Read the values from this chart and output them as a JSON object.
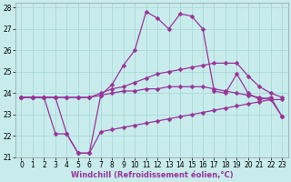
{
  "xlabel": "Windchill (Refroidissement éolien,°C)",
  "bg_color": "#c8ecec",
  "grid_color": "#a8d8d8",
  "line_color": "#993399",
  "hours": [
    0,
    1,
    2,
    3,
    4,
    5,
    6,
    7,
    8,
    9,
    10,
    11,
    12,
    13,
    14,
    15,
    16,
    17,
    18,
    19,
    20,
    21,
    22,
    23
  ],
  "line1": [
    23.8,
    23.8,
    23.8,
    23.8,
    22.1,
    21.2,
    21.2,
    23.9,
    24.4,
    25.3,
    26.0,
    27.8,
    27.5,
    27.0,
    27.7,
    27.6,
    27.0,
    24.1,
    24.0,
    24.9,
    24.0,
    23.7,
    23.8,
    22.9
  ],
  "line2": [
    23.8,
    23.8,
    23.8,
    23.8,
    23.8,
    23.8,
    23.8,
    24.0,
    24.2,
    24.3,
    24.5,
    24.7,
    24.9,
    25.0,
    25.1,
    25.2,
    25.3,
    25.4,
    25.4,
    25.4,
    24.8,
    24.3,
    24.0,
    23.8
  ],
  "line3": [
    23.8,
    23.8,
    23.8,
    23.8,
    23.8,
    23.8,
    23.8,
    23.9,
    24.0,
    24.1,
    24.1,
    24.2,
    24.2,
    24.3,
    24.3,
    24.3,
    24.3,
    24.2,
    24.1,
    24.0,
    23.9,
    23.8,
    23.7,
    23.7
  ],
  "line4": [
    23.8,
    23.8,
    23.8,
    22.1,
    22.1,
    21.2,
    21.2,
    22.2,
    22.3,
    22.4,
    22.5,
    22.6,
    22.7,
    22.8,
    22.9,
    23.0,
    23.1,
    23.2,
    23.3,
    23.4,
    23.5,
    23.6,
    23.7,
    22.9
  ],
  "ylim": [
    21.0,
    28.2
  ],
  "xlim_min": -0.5,
  "xlim_max": 23.5,
  "yticks": [
    21,
    22,
    23,
    24,
    25,
    26,
    27,
    28
  ],
  "xticks": [
    0,
    1,
    2,
    3,
    4,
    5,
    6,
    7,
    8,
    9,
    10,
    11,
    12,
    13,
    14,
    15,
    16,
    17,
    18,
    19,
    20,
    21,
    22,
    23
  ],
  "tick_fontsize": 5.5,
  "xlabel_fontsize": 6.0,
  "lw": 0.9,
  "ms": 2.5
}
